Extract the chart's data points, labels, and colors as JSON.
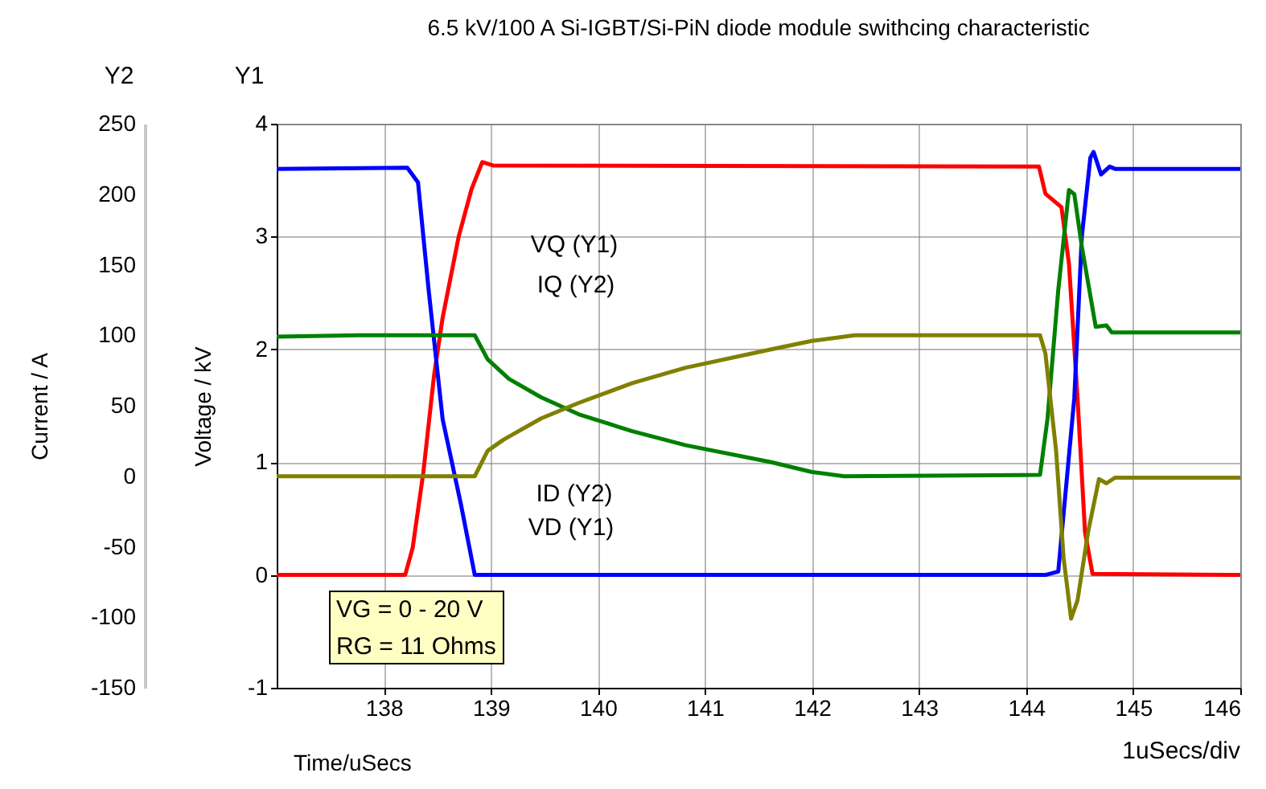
{
  "chart_data": {
    "type": "line",
    "title": "6.5 kV/100 A Si-IGBT/Si-PiN diode module swithcing characteristic",
    "xlabel": "Time/uSecs",
    "ylabel": "Voltage / kV",
    "y2label": "Current / A",
    "annotations": [
      "VG = 0 - 20 V",
      "RG = 11 Ohms",
      "1uSecs/div",
      "Y1",
      "Y2"
    ],
    "xlim": [
      137,
      146
    ],
    "xticks": [
      138,
      139,
      140,
      141,
      142,
      143,
      144,
      145,
      146
    ],
    "ylim": [
      -1,
      4
    ],
    "yticks": [
      -1,
      0,
      1,
      2,
      3,
      4
    ],
    "y2lim": [
      -150,
      250
    ],
    "y2ticks": [
      -150,
      -100,
      -50,
      0,
      50,
      100,
      150,
      200,
      250
    ],
    "grid": true,
    "series": [
      {
        "name": "VQ (Y1)",
        "color": "#ff0000",
        "x": [
          137,
          138.2,
          138.27,
          138.37,
          138.47,
          138.55,
          138.7,
          138.82,
          138.92,
          139.02,
          144.12,
          144.18,
          144.33,
          144.4,
          144.48,
          144.55,
          144.62,
          146
        ],
        "values": [
          0,
          0,
          0.24,
          0.91,
          1.77,
          2.28,
          3.0,
          3.42,
          3.66,
          3.63,
          3.62,
          3.38,
          3.26,
          2.76,
          1.57,
          0.38,
          0.01,
          0
        ]
      },
      {
        "name": "VD (Y1)",
        "color": "#0000ff",
        "x": [
          137,
          138.22,
          138.32,
          138.42,
          138.55,
          138.72,
          138.85,
          144.18,
          144.3,
          144.45,
          144.52,
          144.6,
          144.63,
          144.7,
          144.78,
          144.83,
          146
        ],
        "values": [
          3.6,
          3.61,
          3.48,
          2.52,
          1.38,
          0.63,
          0,
          0,
          0.03,
          1.57,
          3.0,
          3.7,
          3.75,
          3.55,
          3.62,
          3.6,
          3.6
        ]
      },
      {
        "name": "IQ (Y2)",
        "axis": "y2",
        "color": "#008000",
        "x": [
          137,
          137.77,
          138.85,
          138.97,
          139.17,
          139.47,
          139.82,
          140.32,
          140.82,
          141.62,
          142.0,
          142.3,
          144.13,
          144.2,
          144.3,
          144.4,
          144.45,
          144.52,
          144.65,
          144.75,
          144.8,
          146
        ],
        "values": [
          99,
          100,
          100,
          83,
          69,
          56,
          44,
          32,
          22,
          10,
          3,
          0,
          1,
          41,
          132,
          203,
          200,
          163,
          106,
          107,
          102,
          102
        ]
      },
      {
        "name": "ID (Y2)",
        "axis": "y2",
        "color": "#808000",
        "x": [
          137,
          138.85,
          138.97,
          139.12,
          139.47,
          139.82,
          140.32,
          140.82,
          141.62,
          142.0,
          142.4,
          144.13,
          144.18,
          144.28,
          144.35,
          144.42,
          144.48,
          144.58,
          144.68,
          144.75,
          144.83,
          146
        ],
        "values": [
          0,
          0,
          18,
          26,
          41,
          52,
          66,
          77,
          90,
          96,
          100,
          100,
          87,
          18,
          -58,
          -101,
          -88,
          -39,
          -2,
          -5,
          -1,
          -1
        ]
      }
    ]
  }
}
